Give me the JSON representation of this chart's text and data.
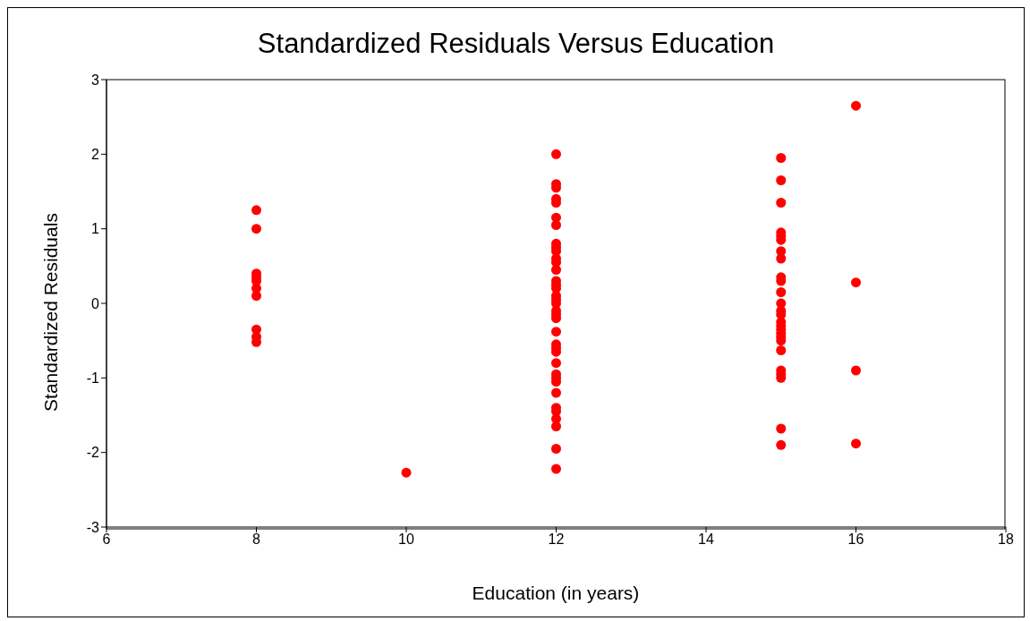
{
  "chart_data": {
    "type": "scatter",
    "title": "Standardized Residuals Versus Education",
    "xlabel": "Education (in years)",
    "ylabel": "Standardized Residuals",
    "xlim": [
      6,
      18
    ],
    "xticks": [
      6,
      8,
      10,
      12,
      14,
      16,
      18
    ],
    "ylim": [
      -3,
      3
    ],
    "yticks": [
      -3,
      -2,
      -1,
      0,
      1,
      2,
      3
    ],
    "grid": false,
    "legend": false,
    "marker": "circle",
    "series": [
      {
        "color": "#ff0000",
        "x": [
          8,
          8,
          8,
          8,
          8,
          8,
          8,
          8,
          8,
          8,
          10,
          12,
          12,
          12,
          12,
          12,
          12,
          12,
          12,
          12,
          12,
          12,
          12,
          12,
          12,
          12,
          12,
          12,
          12,
          12,
          12,
          12,
          12,
          12,
          12,
          12,
          12,
          12,
          12,
          12,
          12,
          12,
          12,
          12,
          12,
          12,
          12,
          12,
          15,
          15,
          15,
          15,
          15,
          15,
          15,
          15,
          15,
          15,
          15,
          15,
          15,
          15,
          15,
          15,
          15,
          15,
          15,
          15,
          15,
          15,
          15,
          15,
          15,
          15,
          16,
          16,
          16,
          16
        ],
        "values": [
          1.25,
          1.0,
          0.4,
          0.35,
          0.3,
          0.2,
          0.1,
          -0.35,
          -0.45,
          -0.52,
          -2.27,
          2.0,
          1.6,
          1.55,
          1.4,
          1.35,
          1.15,
          1.05,
          0.8,
          0.75,
          0.7,
          0.6,
          0.55,
          0.45,
          0.3,
          0.25,
          0.2,
          0.1,
          0.05,
          0,
          -0.1,
          -0.15,
          -0.2,
          -0.38,
          -0.55,
          -0.6,
          -0.65,
          -0.8,
          -0.95,
          -1.0,
          -1.05,
          -1.2,
          -1.4,
          -1.45,
          -1.55,
          -1.65,
          -1.95,
          -2.22,
          1.95,
          1.65,
          1.35,
          0.95,
          0.9,
          0.85,
          0.7,
          0.6,
          0.35,
          0.3,
          0.15,
          0,
          -0.1,
          -0.15,
          -0.25,
          -0.3,
          -0.35,
          -0.4,
          -0.45,
          -0.5,
          -0.63,
          -0.9,
          -0.95,
          -1.0,
          -1.68,
          -1.9,
          2.65,
          0.28,
          -0.9,
          -1.88
        ]
      }
    ]
  }
}
